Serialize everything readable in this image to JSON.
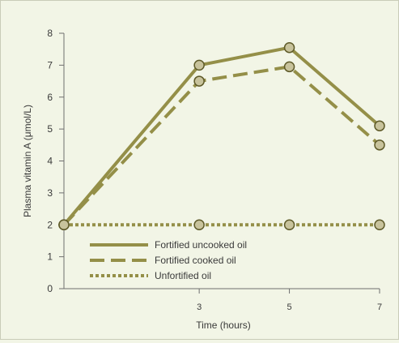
{
  "chart_data": {
    "type": "line",
    "xlabel": "Time (hours)",
    "ylabel": "Plasma vitamin A (μmol/L)",
    "xlim": [
      0,
      7
    ],
    "ylim": [
      0,
      8
    ],
    "x_ticks": [
      3,
      5,
      7
    ],
    "y_ticks": [
      0,
      1,
      2,
      3,
      4,
      5,
      6,
      7,
      8
    ],
    "grid": false,
    "legend_position": "bottom-left",
    "x": [
      0,
      3,
      5,
      7
    ],
    "series": [
      {
        "name": "Fortified uncooked oil",
        "style": "solid",
        "values": [
          2,
          7.0,
          7.55,
          5.1
        ]
      },
      {
        "name": "Fortified cooked oil",
        "style": "dashed",
        "values": [
          2,
          6.5,
          6.95,
          4.5
        ]
      },
      {
        "name": "Unfortified oil",
        "style": "dotted",
        "values": [
          2,
          2,
          2,
          2
        ]
      }
    ],
    "colors": {
      "line": "#948f48",
      "marker_fill": "#c8c39c",
      "marker_stroke": "#5e5a28",
      "background": "#f2f5e6",
      "axis": "#6f6f6f"
    }
  }
}
